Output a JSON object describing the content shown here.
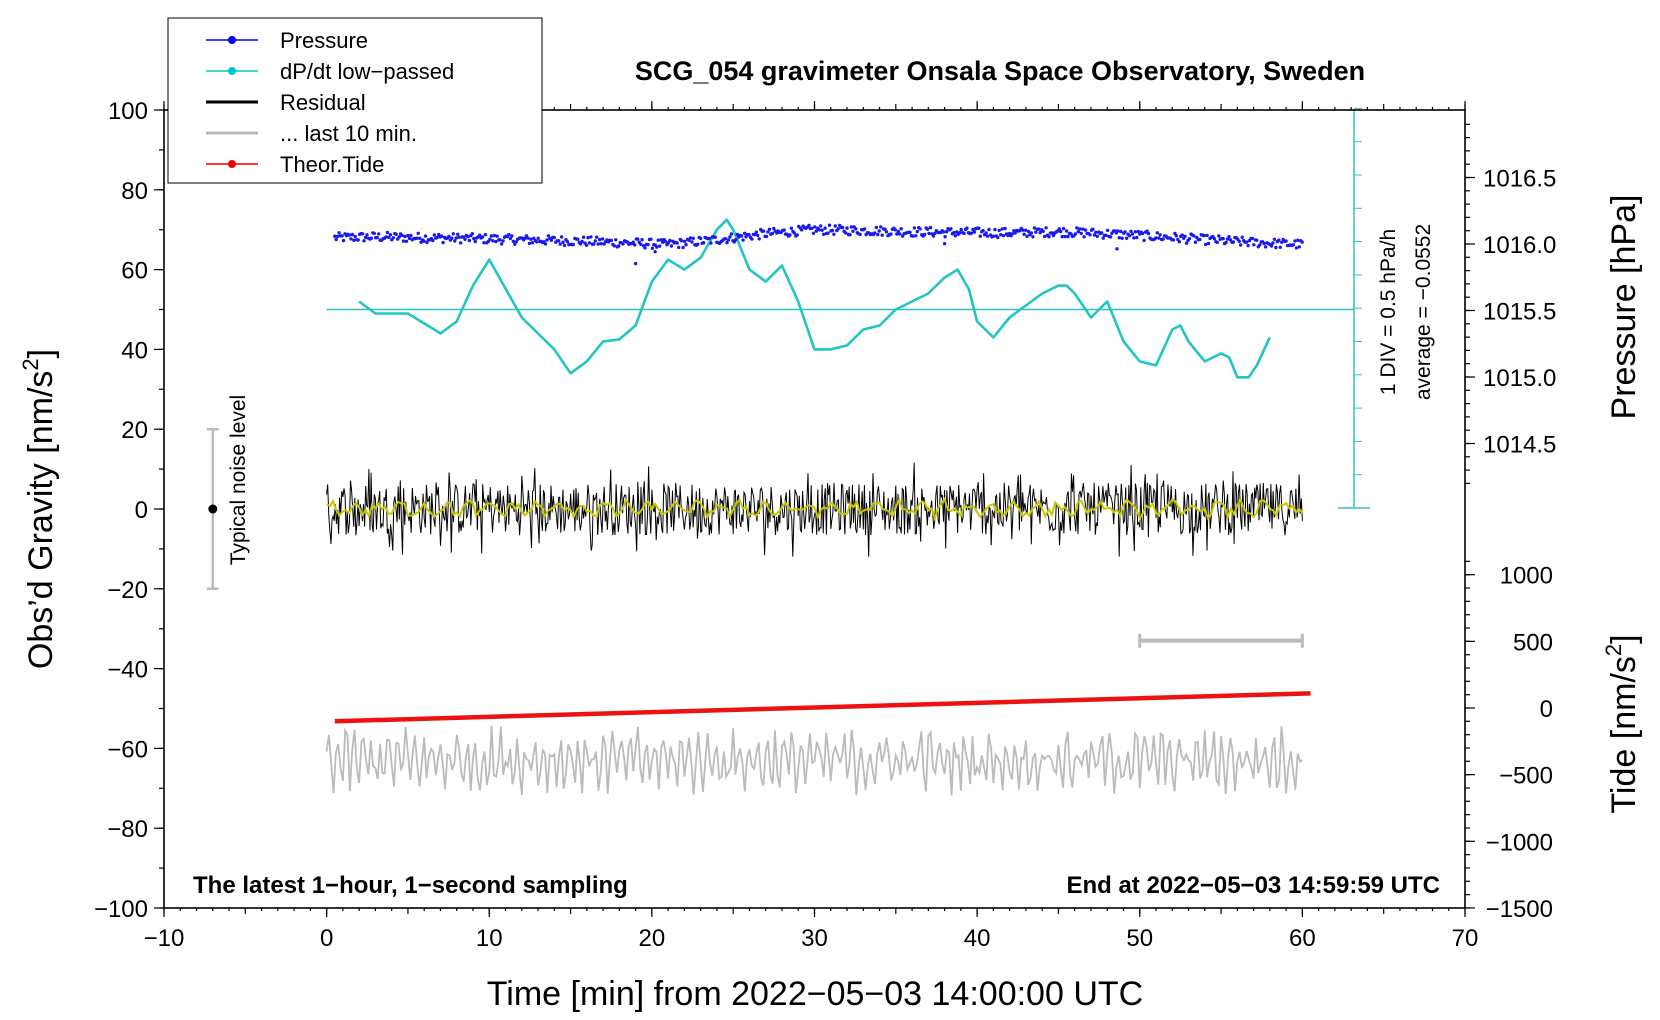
{
  "chart_data": {
    "type": "line",
    "title": "SCG_054 gravimeter Onsala Space Observatory, Sweden",
    "xlabel": "Time [min] from 2022−05−03 14:00:00 UTC",
    "ylabel": "Obs’d Gravity [nm/s",
    "ylabel_sup": "2",
    "ylabel_end": "]",
    "xlim": [
      -10,
      70
    ],
    "ylim": [
      -100,
      100
    ],
    "x_ticks": [
      -10,
      0,
      10,
      20,
      30,
      40,
      50,
      60,
      70
    ],
    "x_tick_labels": [
      "−10",
      "0",
      "10",
      "20",
      "30",
      "40",
      "50",
      "60",
      "70"
    ],
    "y_ticks": [
      -100,
      -80,
      -60,
      -40,
      -20,
      0,
      20,
      40,
      60,
      80,
      100
    ],
    "y_tick_labels": [
      "−100",
      "−80",
      "−60",
      "−40",
      "−20",
      "0",
      "20",
      "40",
      "60",
      "80",
      "100"
    ],
    "pressure_axis": {
      "label": "Pressure [hPa]",
      "ticks": [
        1014.5,
        1015.0,
        1015.5,
        1016.0,
        1016.5
      ],
      "tick_labels": [
        "1014.5",
        "1015.0",
        "1015.5",
        "1016.0",
        "1016.5"
      ]
    },
    "tide_axis": {
      "label": "Tide [nm/s",
      "label_sup": "2",
      "label_end": "]",
      "ticks": [
        -1500,
        -1000,
        -500,
        0,
        500,
        1000
      ],
      "tick_labels": [
        "−1500",
        "−1000",
        "−500",
        "0",
        "500",
        "1000"
      ]
    },
    "legend": [
      {
        "label": "Pressure",
        "color": "#0000ee",
        "marker": true
      },
      {
        "label": "dP/dt low−passed",
        "color": "#00c8c8",
        "marker": true
      },
      {
        "label": "Residual",
        "color": "#000000",
        "marker": false
      },
      {
        "label": "... last 10 min.",
        "color": "#bbbbbb",
        "marker": false
      },
      {
        "label": "Theor.Tide",
        "color": "#ee0000",
        "marker": true
      }
    ],
    "legend_position": "top-left",
    "annotations": {
      "bottom_left": "The latest 1−hour, 1−second sampling",
      "bottom_right": "End at 2022−05−03 14:59:59 UTC",
      "noise": "Typical noise level",
      "dpdt_scale": "1 DIV = 0.5 hPa/h",
      "dpdt_average": "average = −0.0552"
    },
    "noise_bar": {
      "x": -7,
      "y_center": 0,
      "half_range": 20
    },
    "pressure": {
      "x": [
        0.5,
        3,
        6,
        9,
        12,
        15,
        18,
        21,
        24,
        27,
        30,
        33,
        36,
        39,
        42,
        45,
        48,
        51,
        54,
        57,
        60
      ],
      "y": [
        68,
        68.2,
        68,
        67.8,
        67.5,
        67.2,
        66.8,
        66.3,
        67.5,
        69,
        70,
        69.8,
        69.5,
        69.3,
        69.2,
        69.5,
        69,
        68.3,
        67.5,
        66.8,
        66.3
      ]
    },
    "dpdt": {
      "baseline": 50,
      "x": [
        2,
        3,
        5,
        7,
        8,
        9,
        10,
        12,
        14,
        15,
        16,
        17,
        18,
        19,
        20,
        21,
        22,
        23,
        24,
        24.6,
        25,
        26,
        27,
        28,
        29,
        30,
        31,
        32,
        33,
        34,
        35,
        36,
        37,
        38,
        38.8,
        39.5,
        40,
        41,
        42,
        43,
        44,
        45,
        45.5,
        46,
        47,
        48,
        49,
        50,
        51,
        52,
        52.5,
        53,
        54,
        55,
        55.5,
        56,
        56.7,
        57.2,
        58
      ],
      "y": [
        52,
        49,
        49,
        44,
        47,
        56,
        62.5,
        48,
        40,
        34,
        37,
        42,
        42.5,
        46,
        57,
        62.5,
        60,
        63,
        70,
        72.5,
        70,
        60,
        57,
        61,
        52,
        40,
        40,
        41,
        45,
        46,
        50,
        52,
        54,
        58,
        60,
        55,
        47,
        43,
        48,
        51,
        54,
        56,
        56,
        54,
        48,
        52,
        42,
        37,
        36,
        45,
        46,
        42,
        37,
        39,
        38,
        33,
        33,
        36,
        43
      ]
    },
    "residual": {
      "x_start": 0,
      "x_end": 60,
      "center": 0,
      "amplitude": 12,
      "ma_amplitude": 2.5
    },
    "last10": {
      "x_start": 0,
      "x_end": 60,
      "center": -63,
      "amplitude": 8
    },
    "last10_marker": {
      "x_start": 50,
      "x_end": 60,
      "y": -33
    },
    "tide": {
      "x": [
        0.5,
        60.5
      ],
      "y": [
        -53.2,
        -46.2
      ]
    }
  }
}
